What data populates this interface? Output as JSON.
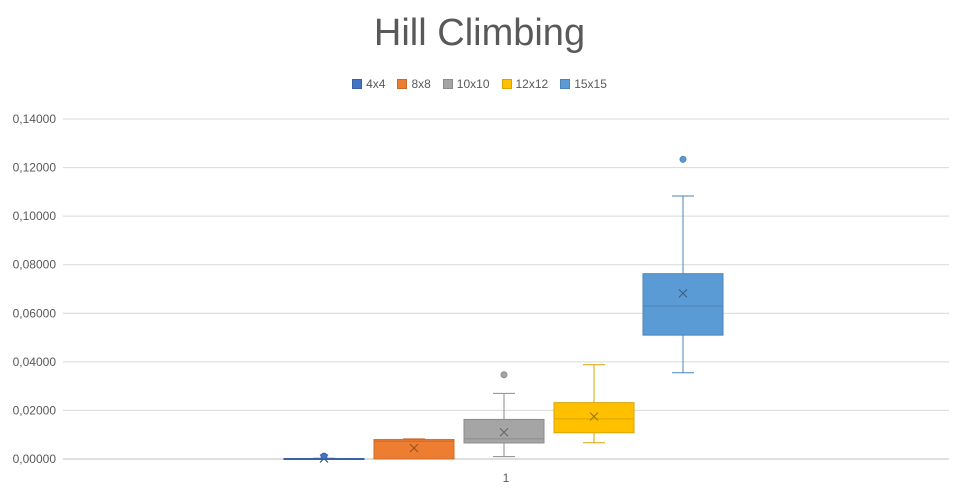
{
  "chart_data": {
    "type": "box",
    "title": "Hill Climbing",
    "categories": [
      "1"
    ],
    "ylim": [
      0,
      0.14
    ],
    "y_ticks": [
      "0,00000",
      "0,02000",
      "0,04000",
      "0,06000",
      "0,08000",
      "0,10000",
      "0,12000",
      "0,14000"
    ],
    "y_tick_values": [
      0,
      0.02,
      0.04,
      0.06,
      0.08,
      0.1,
      0.12,
      0.14
    ],
    "grid": true,
    "legend_position": "top",
    "series": [
      {
        "name": "4x4",
        "color": "#4472C4",
        "min": 0.0,
        "q1": 0.0,
        "median": 0.0001,
        "q3": 0.0002,
        "max": 0.0003,
        "mean": 0.0002,
        "outliers": [
          0.0012
        ]
      },
      {
        "name": "8x8",
        "color": "#ED7D31",
        "min": 0.0,
        "q1": 0.0,
        "median": 0.0073,
        "q3": 0.008,
        "max": 0.0083,
        "mean": 0.0045,
        "outliers": []
      },
      {
        "name": "10x10",
        "color": "#A5A5A5",
        "min": 0.001,
        "q1": 0.0066,
        "median": 0.0083,
        "q3": 0.0163,
        "max": 0.027,
        "mean": 0.011,
        "outliers": [
          0.0347
        ]
      },
      {
        "name": "12x12",
        "color": "#FFC000",
        "min": 0.0067,
        "q1": 0.0108,
        "median": 0.0165,
        "q3": 0.0232,
        "max": 0.0388,
        "mean": 0.0175,
        "outliers": []
      },
      {
        "name": "15x15",
        "color": "#5B9BD5",
        "min": 0.0355,
        "q1": 0.051,
        "median": 0.063,
        "q3": 0.0763,
        "max": 0.1083,
        "mean": 0.0682,
        "outliers": [
          0.1234
        ]
      }
    ]
  }
}
